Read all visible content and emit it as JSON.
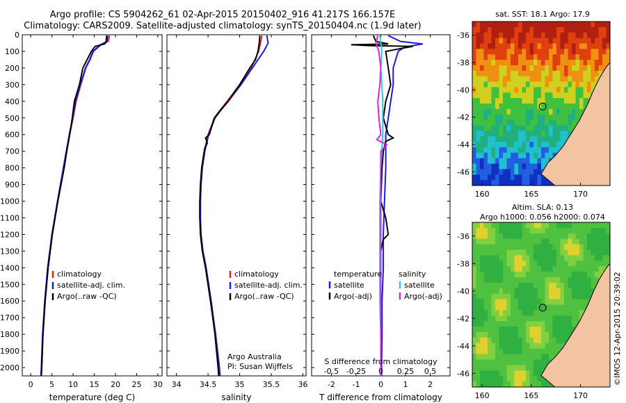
{
  "header": {
    "line1": "Argo profile: CS 5904262_61 02-Apr-2015 20150402_916 41.217S 166.157E",
    "line2": "Climatology: CARS2009. Satellite-adjusted climatology: synTS_20150404.nc (1.9d later)"
  },
  "maps": {
    "sst_title": "sat. SST: 18.1  Argo: 17.9",
    "sla_title_1": "Altim. SLA: 0.13",
    "sla_title_2": "Argo h1000: 0.056  h2000: 0.074",
    "lat_ticks": [
      "-36",
      "-38",
      "-40",
      "-42",
      "-44",
      "-46"
    ],
    "lon_ticks": [
      "160",
      "165",
      "170"
    ],
    "credit": "©IMOS 12-Apr-2015 20:39:02"
  },
  "colors": {
    "climatology": "#e02020",
    "satellite": "#1a1ae0",
    "argo": "#000000",
    "sal_satellite": "#20d0e0",
    "sal_argo": "#e020e0"
  },
  "chart_data": [
    {
      "type": "line",
      "xlabel": "temperature (deg C)",
      "xticks": [
        "0",
        "5",
        "10",
        "15",
        "20",
        "25",
        "30"
      ],
      "xlim": [
        -2,
        31
      ],
      "yticks": [
        "0",
        "100",
        "200",
        "300",
        "400",
        "500",
        "600",
        "700",
        "800",
        "900",
        "1000",
        "1100",
        "1200",
        "1300",
        "1400",
        "1500",
        "1600",
        "1700",
        "1800",
        "1900",
        "2000"
      ],
      "ylim": [
        0,
        2050
      ],
      "legend": [
        "climatology",
        "satellite-adj. clim.",
        "Argo(..raw -QC)"
      ],
      "series": [
        {
          "name": "climatology",
          "y": [
            5,
            40,
            60,
            100,
            150,
            200,
            300,
            400,
            500,
            600,
            700,
            800,
            1000,
            1200,
            1400,
            1600,
            1800,
            2000,
            2050
          ],
          "x": [
            18.6,
            18.3,
            16.6,
            14.8,
            14.0,
            13.0,
            11.8,
            10.7,
            10.0,
            9.2,
            8.5,
            7.8,
            6.4,
            5.1,
            4.1,
            3.4,
            2.9,
            2.6,
            2.5
          ]
        },
        {
          "name": "satellite-adj. clim.",
          "y": [
            5,
            40,
            60,
            100,
            150,
            200,
            300,
            400,
            500,
            600,
            700,
            800,
            1000,
            1200,
            1400,
            1600,
            1800,
            2000,
            2050
          ],
          "x": [
            18.2,
            18.0,
            16.4,
            14.7,
            13.9,
            12.9,
            11.7,
            10.6,
            9.9,
            9.1,
            8.4,
            7.7,
            6.3,
            5.0,
            4.0,
            3.3,
            2.8,
            2.5,
            2.4
          ]
        },
        {
          "name": "Argo(..raw -QC)",
          "y": [
            5,
            40,
            55,
            70,
            100,
            150,
            200,
            300,
            400,
            500,
            600,
            700,
            800,
            1000,
            1200,
            1400,
            1600,
            1800,
            2000,
            2050
          ],
          "x": [
            17.9,
            17.8,
            17.5,
            15.2,
            14.3,
            13.3,
            12.3,
            11.5,
            10.3,
            9.8,
            9.2,
            8.5,
            7.9,
            6.4,
            5.1,
            4.1,
            3.4,
            2.9,
            2.6,
            2.5
          ]
        }
      ]
    },
    {
      "type": "line",
      "xlabel": "salinity",
      "xticks": [
        "34",
        "34.5",
        "35",
        "35.5",
        "36"
      ],
      "xlim": [
        33.85,
        36.05
      ],
      "legend": [
        "climatology",
        "satellite-adj. clim.",
        "Argo(..raw -QC)"
      ],
      "annotation": [
        "Argo Australia",
        "PI: Susan Wijffels"
      ],
      "series": [
        {
          "name": "climatology",
          "y": [
            5,
            50,
            100,
            200,
            300,
            400,
            450,
            500,
            600,
            700,
            800,
            900,
            1000,
            1100,
            1200,
            1300,
            1400,
            1600,
            1800,
            2000,
            2050
          ],
          "x": [
            35.35,
            35.33,
            35.3,
            35.18,
            35.0,
            34.8,
            34.7,
            34.6,
            34.5,
            34.44,
            34.4,
            34.38,
            34.37,
            34.37,
            34.38,
            34.41,
            34.46,
            34.54,
            34.61,
            34.66,
            34.67
          ]
        },
        {
          "name": "satellite-adj. clim.",
          "y": [
            5,
            50,
            100,
            200,
            300,
            400,
            450,
            500,
            600,
            700,
            800,
            900,
            1000,
            1100,
            1200,
            1300,
            1400,
            1600,
            1800,
            2000,
            2050
          ],
          "x": [
            35.43,
            35.45,
            35.38,
            35.2,
            35.02,
            34.82,
            34.71,
            34.61,
            34.51,
            34.45,
            34.41,
            34.39,
            34.38,
            34.38,
            34.39,
            34.42,
            34.47,
            34.55,
            34.62,
            34.68,
            34.69
          ]
        },
        {
          "name": "Argo(..raw -QC)",
          "y": [
            5,
            50,
            100,
            150,
            200,
            300,
            400,
            450,
            500,
            600,
            620,
            650,
            680,
            700,
            800,
            900,
            1000,
            1100,
            1200,
            1300,
            1400,
            1600,
            1800,
            2000,
            2050
          ],
          "x": [
            35.32,
            35.31,
            35.29,
            35.25,
            35.16,
            35.0,
            34.82,
            34.7,
            34.6,
            34.52,
            34.46,
            34.49,
            34.45,
            34.44,
            34.4,
            34.38,
            34.37,
            34.37,
            34.38,
            34.41,
            34.46,
            34.54,
            34.61,
            34.66,
            34.67
          ]
        }
      ]
    },
    {
      "type": "line",
      "xlabel": "T difference from climatology",
      "xlabel_top": "S difference from climatology",
      "xticks": [
        "-2",
        "-1",
        "0",
        "1",
        "2"
      ],
      "xlim": [
        -2.8,
        2.8
      ],
      "xticks_s": [
        "-0.5",
        "-0.25",
        "0",
        "0.25",
        "0.5"
      ],
      "legend_left_title": "temperature",
      "legend_right_title": "salinity",
      "legend": [
        "satellite",
        "Argo(-adj)",
        "satellite",
        "Argo(-adj)"
      ],
      "series": [
        {
          "name": "satellite",
          "group": "temperature",
          "y": [
            5,
            40,
            55,
            65,
            80,
            100,
            200,
            300,
            400,
            500,
            600,
            700,
            800,
            1000,
            1200,
            1400,
            1600,
            1800,
            2000,
            2050
          ],
          "x": [
            0.3,
            0.8,
            1.7,
            1.3,
            0.9,
            0.7,
            0.5,
            0.5,
            0.4,
            0.3,
            0.2,
            0.2,
            0.2,
            0.15,
            0.1,
            0.1,
            0.05,
            0.05,
            0.03,
            0.03
          ]
        },
        {
          "name": "Argo(-adj)",
          "group": "temperature",
          "y": [
            5,
            40,
            55,
            60,
            65,
            70,
            80,
            100,
            200,
            300,
            400,
            500,
            600,
            620,
            640,
            700,
            800,
            1000,
            1100,
            1200,
            1230,
            1300,
            1400,
            1600,
            1800,
            2000,
            2050
          ],
          "x": [
            -0.3,
            -0.2,
            0.3,
            -1.2,
            -0.5,
            1.3,
            0.9,
            0.2,
            0.3,
            0.4,
            0.2,
            0.1,
            0.3,
            0.5,
            0.2,
            0.1,
            0.05,
            0.0,
            0.2,
            0.3,
            0.1,
            0.0,
            0.0,
            0.0,
            0.0,
            0.0,
            0.0
          ]
        },
        {
          "name": "satellite",
          "group": "salinity",
          "y": [
            5,
            50,
            100,
            200,
            400,
            600,
            800,
            1000,
            1200,
            1400,
            1600,
            1800,
            2000,
            2050
          ],
          "x": [
            -0.01,
            0.0,
            0.01,
            0.0,
            0.02,
            0.02,
            0.0,
            -0.01,
            -0.01,
            -0.01,
            -0.01,
            0.0,
            0.0,
            0.0
          ]
        },
        {
          "name": "Argo(-adj)",
          "group": "salinity",
          "y": [
            5,
            50,
            100,
            200,
            300,
            400,
            500,
            600,
            630,
            660,
            700,
            800,
            900,
            1000,
            1200,
            1400,
            1600,
            1800,
            2000,
            2050
          ],
          "x": [
            -0.03,
            -0.05,
            -0.02,
            0.0,
            -0.01,
            -0.03,
            -0.02,
            0.0,
            -0.04,
            0.06,
            0.0,
            0.0,
            0.0,
            0.0,
            0.0,
            0.0,
            0.0,
            0.0,
            0.0,
            0.0
          ]
        }
      ]
    }
  ]
}
